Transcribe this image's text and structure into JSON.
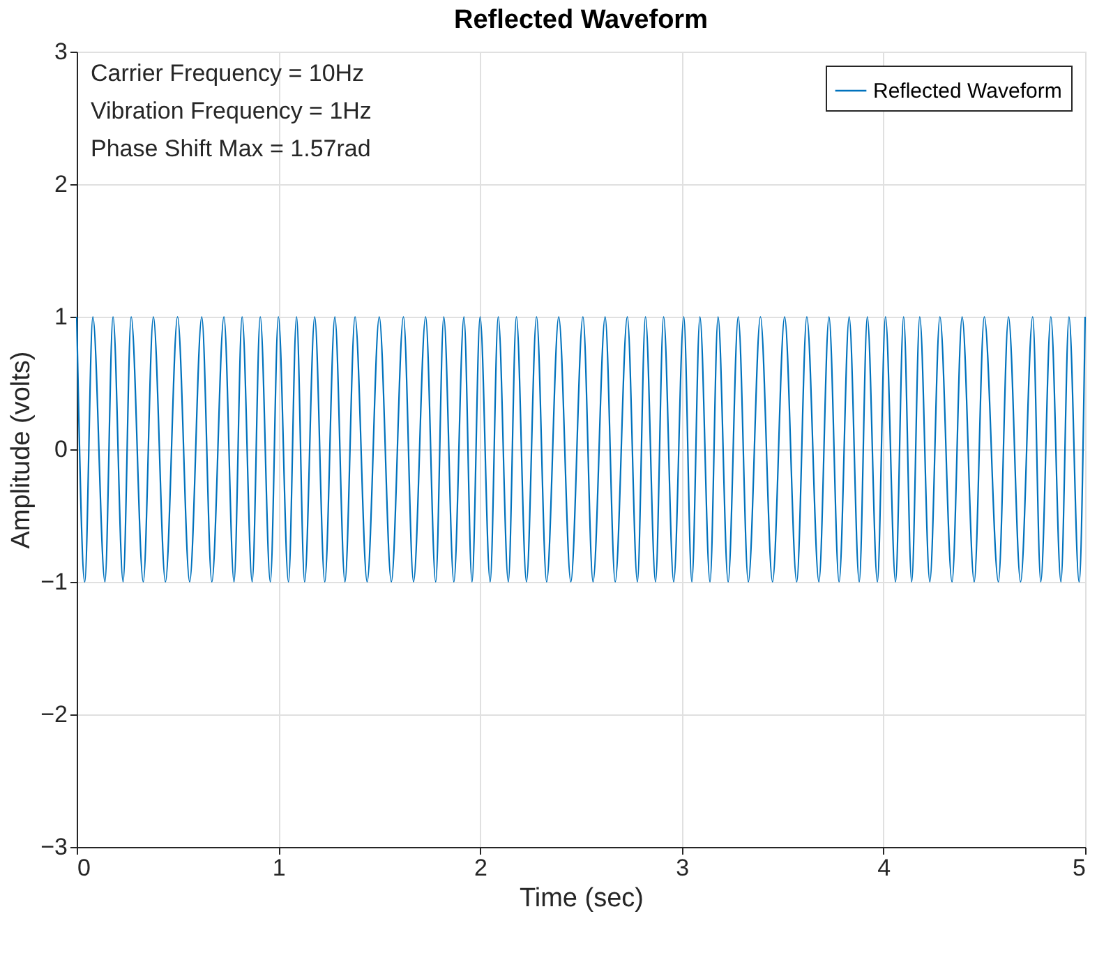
{
  "chart_data": {
    "type": "line",
    "title": "Reflected Waveform",
    "xlabel": "Time (sec)",
    "ylabel": "Amplitude (volts)",
    "annotations": [
      "Carrier Frequency = 10Hz",
      "Vibration Frequency = 1Hz",
      "Phase Shift Max = 1.57rad"
    ],
    "xlim": [
      0,
      5
    ],
    "xticks": [
      0,
      1,
      2,
      3,
      4,
      5
    ],
    "ylim": [
      -3,
      3
    ],
    "yticks": [
      -3,
      -2,
      -1,
      0,
      1,
      2,
      3
    ],
    "grid": true,
    "legend": "top right",
    "marker": "none",
    "line_style": "solid",
    "x": [
      0,
      0.04,
      0.08,
      0.14,
      0.18,
      0.23,
      0.27,
      0.33,
      0.38,
      0.44,
      0.5,
      0.56,
      0.62,
      0.67,
      0.73,
      0.78,
      0.82,
      0.87,
      0.91,
      0.96,
      1.0,
      1.05,
      1.09,
      1.13,
      1.18,
      1.23,
      1.28,
      1.33,
      1.38,
      1.44,
      1.5,
      1.56,
      1.62,
      1.67,
      1.73,
      1.78,
      1.82,
      1.87,
      1.92,
      1.96,
      2.0,
      2.05,
      2.09,
      2.14,
      2.18,
      2.23,
      2.28,
      2.33,
      2.39,
      2.45,
      2.51,
      2.56,
      2.62,
      2.67,
      2.73,
      2.78,
      2.82,
      2.87,
      2.91,
      2.96,
      3.01,
      3.05,
      3.09,
      3.14,
      3.18,
      3.23,
      3.28,
      3.33,
      3.39,
      3.45,
      3.51,
      3.57,
      3.62,
      3.68,
      3.73,
      3.78,
      3.83,
      3.88,
      3.92,
      3.97,
      4.01,
      4.06,
      4.1,
      4.14,
      4.18,
      4.23,
      4.28,
      4.34,
      4.39,
      4.45,
      4.5,
      4.57,
      4.62,
      4.68,
      4.74,
      4.78,
      4.83,
      4.88,
      4.92,
      4.97,
      5.0
    ],
    "series": [
      {
        "name": "Reflected Waveform",
        "color": "#0072bd",
        "values": [
          1,
          -1,
          1,
          -1,
          1,
          -1,
          1,
          -1,
          1,
          -1,
          1,
          -1,
          1,
          -1,
          1,
          -1,
          1,
          -1,
          1,
          -1,
          1,
          -1,
          1,
          -1,
          1,
          -1,
          1,
          -1,
          1,
          -1,
          1,
          -1,
          1,
          -1,
          1,
          -1,
          1,
          -1,
          1,
          -1,
          1,
          -1,
          1,
          -1,
          1,
          -1,
          1,
          -1,
          1,
          -1,
          1,
          -1,
          1,
          -1,
          1,
          -1,
          1,
          -1,
          1,
          -1,
          1,
          -1,
          1,
          -1,
          1,
          -1,
          1,
          -1,
          1,
          -1,
          1,
          -1,
          1,
          -1,
          1,
          -1,
          1,
          -1,
          1,
          -1,
          1,
          -1,
          1,
          -1,
          1,
          -1,
          1,
          -1,
          1,
          -1,
          1,
          -1,
          1,
          -1,
          1,
          -1,
          1,
          -1,
          1,
          -1,
          1
        ]
      }
    ]
  }
}
